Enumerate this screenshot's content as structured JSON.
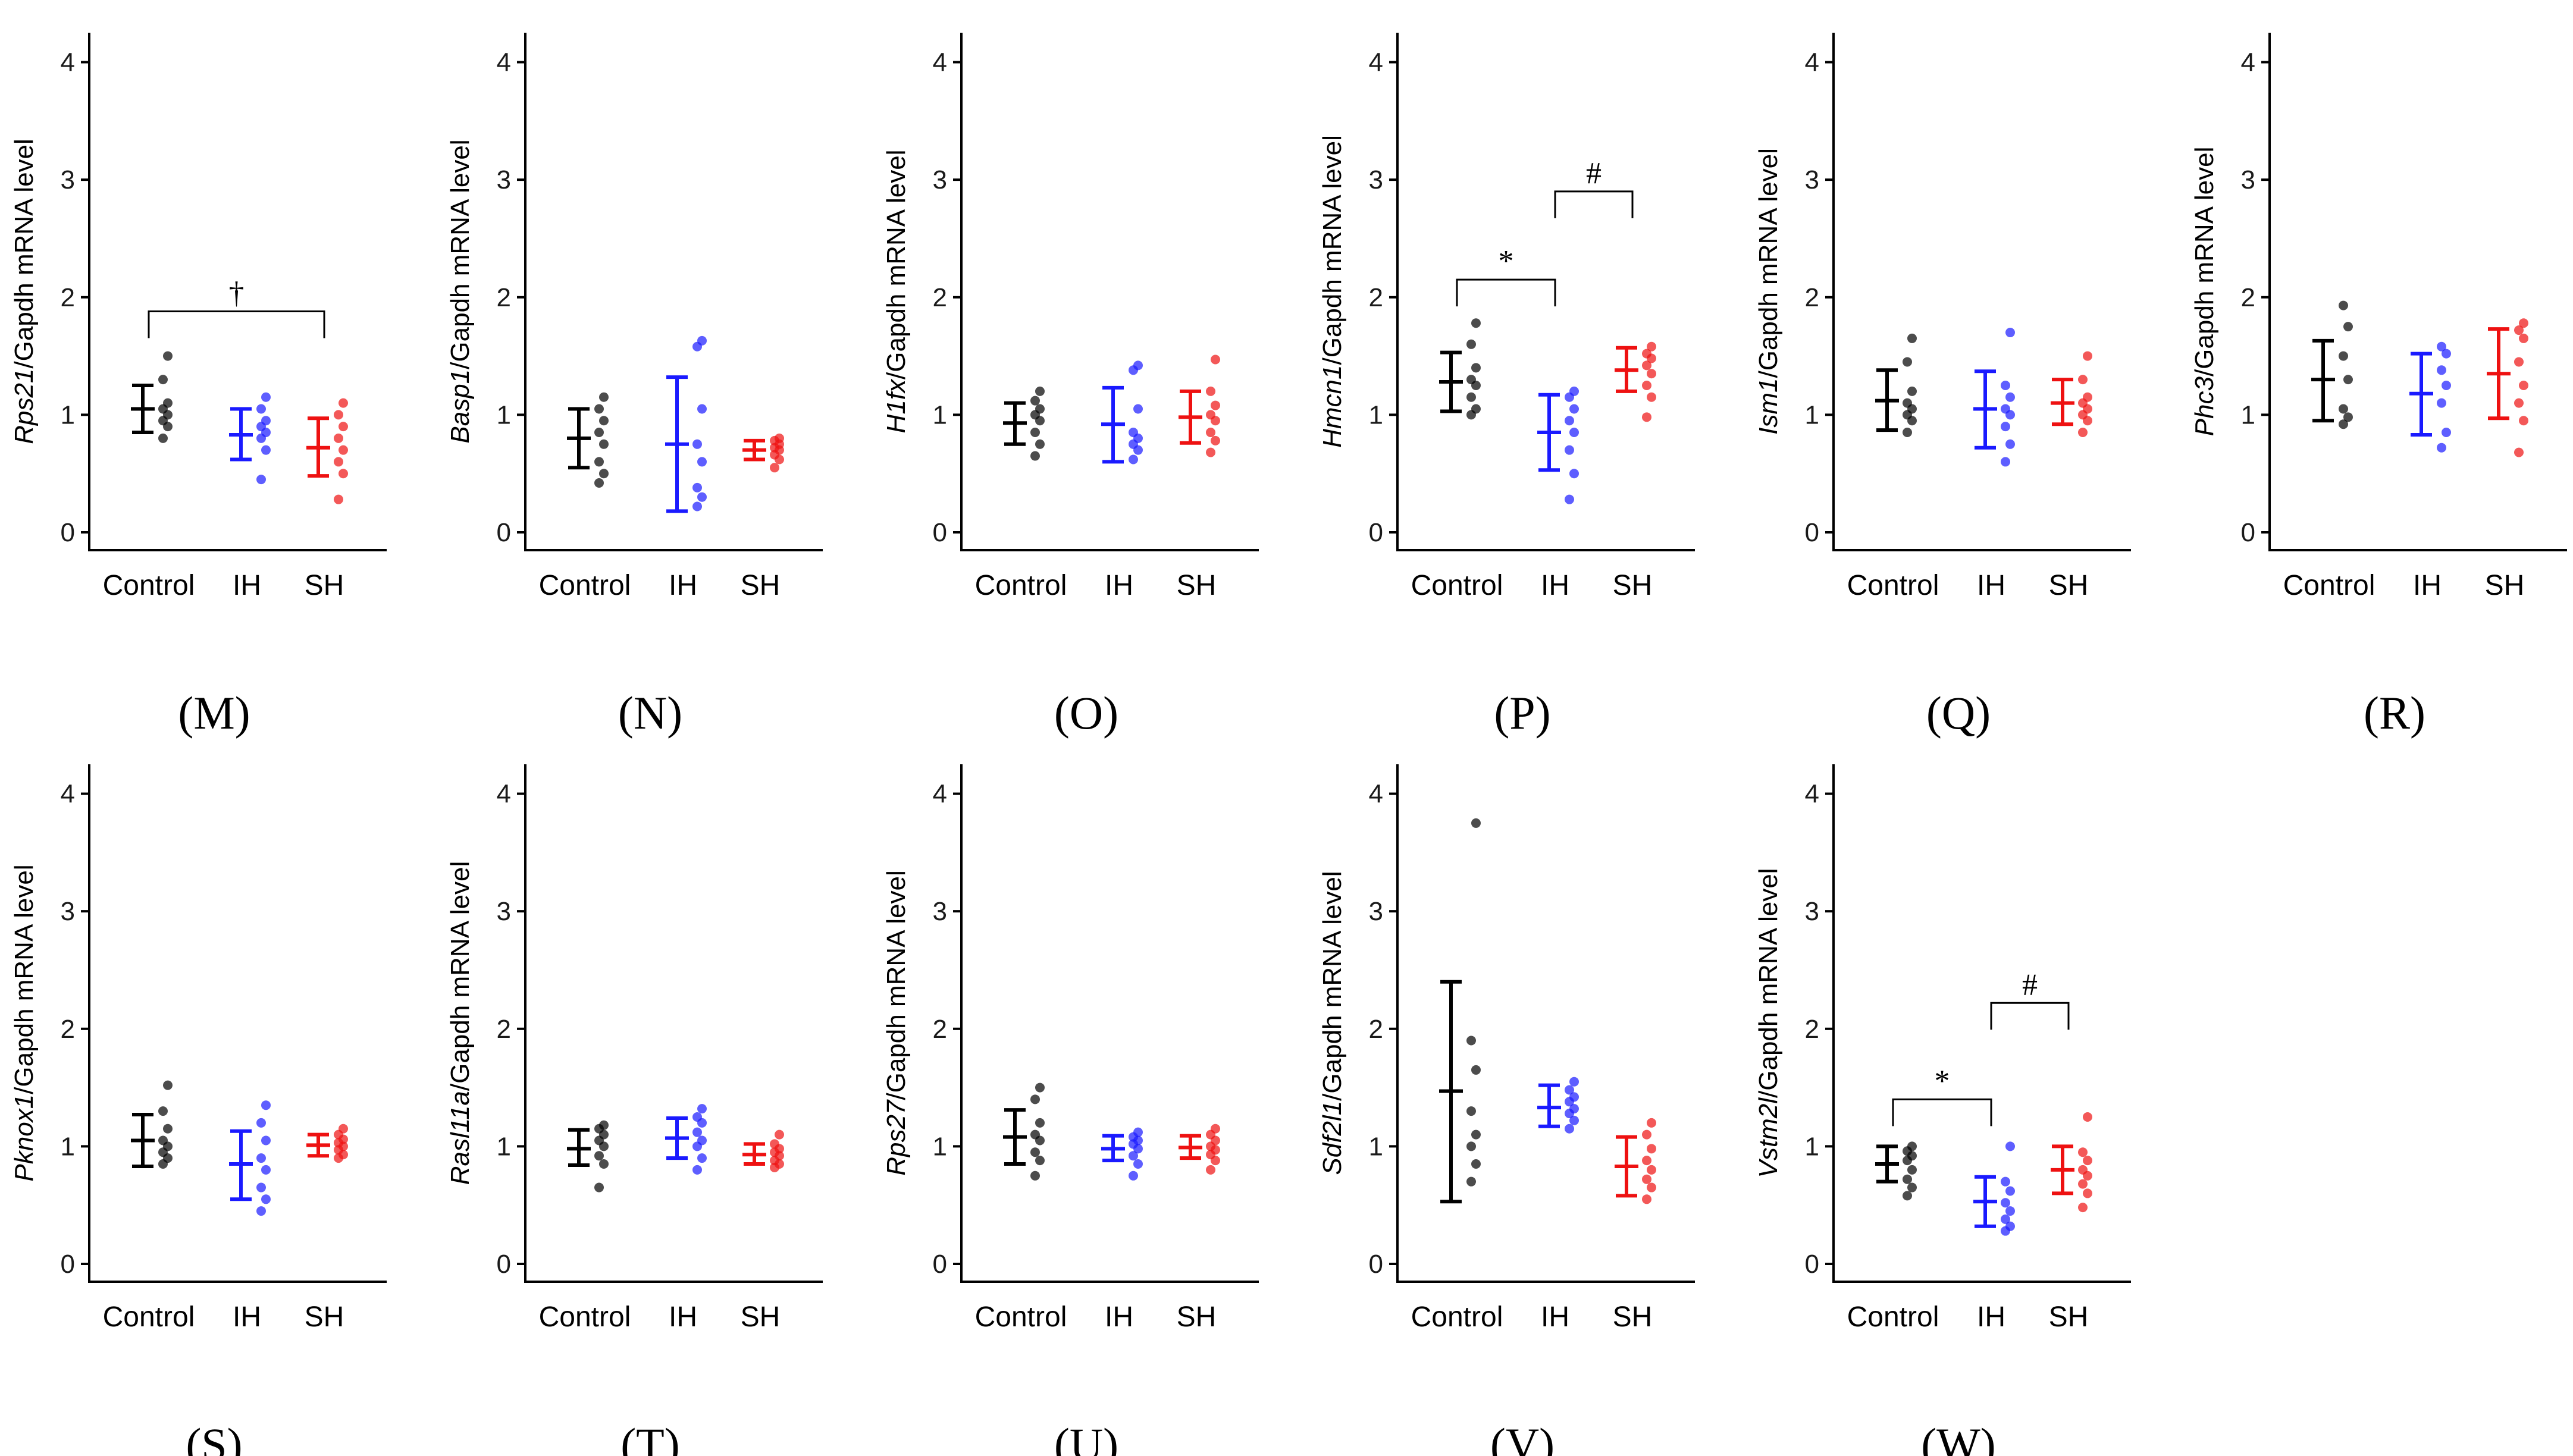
{
  "chart_data": [
    {
      "panel": "(M)",
      "type": "scatter",
      "gene": "Rps21",
      "ylabel_suffix": "/Gapdh mRNA level",
      "categories": [
        "Control",
        "IH",
        "SH"
      ],
      "yticks": [
        "0",
        "1",
        "2",
        "3",
        "4"
      ],
      "ylim": [
        0,
        4.2
      ],
      "series": [
        {
          "name": "Control",
          "color": "#000000",
          "mean": 1.05,
          "lower": 0.85,
          "upper": 1.25,
          "points": [
            0.8,
            0.9,
            0.95,
            1.0,
            1.05,
            1.1,
            1.3,
            1.5
          ]
        },
        {
          "name": "IH",
          "color": "#1a1aff",
          "mean": 0.83,
          "lower": 0.62,
          "upper": 1.05,
          "points": [
            0.45,
            0.7,
            0.8,
            0.85,
            0.9,
            0.95,
            1.05,
            1.15
          ]
        },
        {
          "name": "SH",
          "color": "#ee1111",
          "mean": 0.72,
          "lower": 0.48,
          "upper": 0.97,
          "points": [
            0.28,
            0.5,
            0.6,
            0.7,
            0.8,
            0.9,
            1.0,
            1.1
          ]
        }
      ],
      "annotations": [
        {
          "from": 0,
          "to": 2,
          "label": "†",
          "y": 1.88
        }
      ]
    },
    {
      "panel": "(N)",
      "type": "scatter",
      "gene": "Basp1",
      "ylabel_suffix": "/Gapdh mRNA level",
      "categories": [
        "Control",
        "IH",
        "SH"
      ],
      "yticks": [
        "0",
        "1",
        "2",
        "3",
        "4"
      ],
      "ylim": [
        0,
        4.2
      ],
      "series": [
        {
          "name": "Control",
          "color": "#000000",
          "mean": 0.8,
          "lower": 0.55,
          "upper": 1.05,
          "points": [
            0.42,
            0.5,
            0.6,
            0.75,
            0.85,
            0.95,
            1.05,
            1.15
          ]
        },
        {
          "name": "IH",
          "color": "#1a1aff",
          "mean": 0.75,
          "lower": 0.18,
          "upper": 1.32,
          "points": [
            0.22,
            0.3,
            0.38,
            0.6,
            0.75,
            1.05,
            1.58,
            1.63
          ]
        },
        {
          "name": "SH",
          "color": "#ee1111",
          "mean": 0.7,
          "lower": 0.62,
          "upper": 0.78,
          "points": [
            0.55,
            0.62,
            0.66,
            0.7,
            0.72,
            0.75,
            0.78,
            0.8
          ]
        }
      ],
      "annotations": []
    },
    {
      "panel": "(O)",
      "type": "scatter",
      "gene": "H1fx",
      "ylabel_suffix": "/Gapdh mRNA level",
      "categories": [
        "Control",
        "IH",
        "SH"
      ],
      "yticks": [
        "0",
        "1",
        "2",
        "3",
        "4"
      ],
      "ylim": [
        0,
        4.2
      ],
      "series": [
        {
          "name": "Control",
          "color": "#000000",
          "mean": 0.93,
          "lower": 0.75,
          "upper": 1.1,
          "points": [
            0.65,
            0.75,
            0.85,
            0.95,
            1.0,
            1.05,
            1.12,
            1.2
          ]
        },
        {
          "name": "IH",
          "color": "#1a1aff",
          "mean": 0.92,
          "lower": 0.6,
          "upper": 1.23,
          "points": [
            0.62,
            0.7,
            0.75,
            0.8,
            0.85,
            1.05,
            1.38,
            1.42
          ]
        },
        {
          "name": "SH",
          "color": "#ee1111",
          "mean": 0.98,
          "lower": 0.76,
          "upper": 1.2,
          "points": [
            0.68,
            0.78,
            0.85,
            0.95,
            1.0,
            1.08,
            1.2,
            1.47
          ]
        }
      ],
      "annotations": []
    },
    {
      "panel": "(P)",
      "type": "scatter",
      "gene": "Hmcn1",
      "ylabel_suffix": "/Gapdh mRNA level",
      "categories": [
        "Control",
        "IH",
        "SH"
      ],
      "yticks": [
        "0",
        "1",
        "2",
        "3",
        "4"
      ],
      "ylim": [
        0,
        4.2
      ],
      "series": [
        {
          "name": "Control",
          "color": "#000000",
          "mean": 1.28,
          "lower": 1.03,
          "upper": 1.53,
          "points": [
            1.0,
            1.05,
            1.15,
            1.25,
            1.3,
            1.4,
            1.6,
            1.78
          ]
        },
        {
          "name": "IH",
          "color": "#1a1aff",
          "mean": 0.85,
          "lower": 0.53,
          "upper": 1.17,
          "points": [
            0.28,
            0.5,
            0.7,
            0.85,
            0.95,
            1.05,
            1.15,
            1.2
          ]
        },
        {
          "name": "SH",
          "color": "#ee1111",
          "mean": 1.38,
          "lower": 1.2,
          "upper": 1.57,
          "points": [
            0.98,
            1.15,
            1.25,
            1.35,
            1.42,
            1.48,
            1.52,
            1.58
          ]
        }
      ],
      "annotations": [
        {
          "from": 0,
          "to": 1,
          "label": "*",
          "y": 2.15
        },
        {
          "from": 1,
          "to": 2,
          "label": "#",
          "y": 2.9
        }
      ]
    },
    {
      "panel": "(Q)",
      "type": "scatter",
      "gene": "Ism1",
      "ylabel_suffix": "/Gapdh mRNA level",
      "categories": [
        "Control",
        "IH",
        "SH"
      ],
      "yticks": [
        "0",
        "1",
        "2",
        "3",
        "4"
      ],
      "ylim": [
        0,
        4.2
      ],
      "series": [
        {
          "name": "Control",
          "color": "#000000",
          "mean": 1.12,
          "lower": 0.87,
          "upper": 1.38,
          "points": [
            0.85,
            0.95,
            1.0,
            1.05,
            1.1,
            1.2,
            1.45,
            1.65
          ]
        },
        {
          "name": "IH",
          "color": "#1a1aff",
          "mean": 1.05,
          "lower": 0.72,
          "upper": 1.37,
          "points": [
            0.6,
            0.75,
            0.9,
            1.0,
            1.05,
            1.15,
            1.25,
            1.7
          ]
        },
        {
          "name": "SH",
          "color": "#ee1111",
          "mean": 1.1,
          "lower": 0.92,
          "upper": 1.3,
          "points": [
            0.85,
            0.95,
            1.0,
            1.05,
            1.1,
            1.15,
            1.3,
            1.5
          ]
        }
      ],
      "annotations": []
    },
    {
      "panel": "(R)",
      "type": "scatter",
      "gene": "Phc3",
      "ylabel_suffix": "/Gapdh mRNA level",
      "categories": [
        "Control",
        "IH",
        "SH"
      ],
      "yticks": [
        "0",
        "1",
        "2",
        "3",
        "4"
      ],
      "ylim": [
        0,
        4.2
      ],
      "series": [
        {
          "name": "Control",
          "color": "#000000",
          "mean": 1.3,
          "lower": 0.95,
          "upper": 1.63,
          "points": [
            0.92,
            0.98,
            1.05,
            1.3,
            1.5,
            1.75,
            1.93
          ]
        },
        {
          "name": "IH",
          "color": "#1a1aff",
          "mean": 1.18,
          "lower": 0.83,
          "upper": 1.52,
          "points": [
            0.72,
            0.85,
            1.1,
            1.25,
            1.38,
            1.52,
            1.58
          ]
        },
        {
          "name": "SH",
          "color": "#ee1111",
          "mean": 1.35,
          "lower": 0.97,
          "upper": 1.73,
          "points": [
            0.68,
            0.95,
            1.1,
            1.25,
            1.45,
            1.65,
            1.72,
            1.78
          ]
        }
      ],
      "annotations": []
    },
    {
      "panel": "(S)",
      "type": "scatter",
      "gene": "Pknox1",
      "ylabel_suffix": "/Gapdh mRNA level",
      "categories": [
        "Control",
        "IH",
        "SH"
      ],
      "yticks": [
        "0",
        "1",
        "2",
        "3",
        "4"
      ],
      "ylim": [
        0,
        4.2
      ],
      "series": [
        {
          "name": "Control",
          "color": "#000000",
          "mean": 1.05,
          "lower": 0.83,
          "upper": 1.27,
          "points": [
            0.85,
            0.9,
            0.95,
            1.0,
            1.05,
            1.15,
            1.3,
            1.52
          ]
        },
        {
          "name": "IH",
          "color": "#1a1aff",
          "mean": 0.85,
          "lower": 0.55,
          "upper": 1.13,
          "points": [
            0.45,
            0.55,
            0.65,
            0.8,
            0.9,
            1.05,
            1.2,
            1.35
          ]
        },
        {
          "name": "SH",
          "color": "#ee1111",
          "mean": 1.01,
          "lower": 0.92,
          "upper": 1.1,
          "points": [
            0.9,
            0.93,
            0.97,
            1.0,
            1.03,
            1.06,
            1.1,
            1.15
          ]
        }
      ],
      "annotations": []
    },
    {
      "panel": "(T)",
      "type": "scatter",
      "gene": "Rasl11a",
      "ylabel_suffix": "/Gapdh mRNA level",
      "categories": [
        "Control",
        "IH",
        "SH"
      ],
      "yticks": [
        "0",
        "1",
        "2",
        "3",
        "4"
      ],
      "ylim": [
        0,
        4.2
      ],
      "series": [
        {
          "name": "Control",
          "color": "#000000",
          "mean": 0.98,
          "lower": 0.84,
          "upper": 1.14,
          "points": [
            0.65,
            0.85,
            0.92,
            1.0,
            1.05,
            1.1,
            1.15,
            1.18
          ]
        },
        {
          "name": "IH",
          "color": "#1a1aff",
          "mean": 1.07,
          "lower": 0.9,
          "upper": 1.24,
          "points": [
            0.8,
            0.9,
            1.0,
            1.05,
            1.12,
            1.2,
            1.25,
            1.32
          ]
        },
        {
          "name": "SH",
          "color": "#ee1111",
          "mean": 0.93,
          "lower": 0.85,
          "upper": 1.02,
          "points": [
            0.82,
            0.85,
            0.88,
            0.92,
            0.95,
            0.98,
            1.02,
            1.1
          ]
        }
      ],
      "annotations": []
    },
    {
      "panel": "(U)",
      "type": "scatter",
      "gene": "Rps27",
      "ylabel_suffix": "/Gapdh mRNA level",
      "categories": [
        "Control",
        "IH",
        "SH"
      ],
      "yticks": [
        "0",
        "1",
        "2",
        "3",
        "4"
      ],
      "ylim": [
        0,
        4.2
      ],
      "series": [
        {
          "name": "Control",
          "color": "#000000",
          "mean": 1.08,
          "lower": 0.85,
          "upper": 1.31,
          "points": [
            0.75,
            0.88,
            0.95,
            1.05,
            1.1,
            1.2,
            1.4,
            1.5
          ]
        },
        {
          "name": "IH",
          "color": "#1a1aff",
          "mean": 0.98,
          "lower": 0.88,
          "upper": 1.09,
          "points": [
            0.75,
            0.85,
            0.92,
            0.98,
            1.02,
            1.05,
            1.08,
            1.12
          ]
        },
        {
          "name": "SH",
          "color": "#ee1111",
          "mean": 0.99,
          "lower": 0.9,
          "upper": 1.09,
          "points": [
            0.8,
            0.88,
            0.93,
            0.97,
            1.0,
            1.05,
            1.1,
            1.15
          ]
        }
      ],
      "annotations": []
    },
    {
      "panel": "(V)",
      "type": "scatter",
      "gene": "Sdf2l1",
      "ylabel_suffix": "/Gapdh mRNA level",
      "categories": [
        "Control",
        "IH",
        "SH"
      ],
      "yticks": [
        "0",
        "1",
        "2",
        "3",
        "4"
      ],
      "ylim": [
        0,
        4.2
      ],
      "series": [
        {
          "name": "Control",
          "color": "#000000",
          "mean": 1.47,
          "lower": 0.53,
          "upper": 2.4,
          "points": [
            0.7,
            0.85,
            1.0,
            1.1,
            1.3,
            1.65,
            1.9,
            3.75
          ]
        },
        {
          "name": "IH",
          "color": "#1a1aff",
          "mean": 1.33,
          "lower": 1.17,
          "upper": 1.52,
          "points": [
            1.15,
            1.22,
            1.28,
            1.32,
            1.38,
            1.42,
            1.48,
            1.55
          ]
        },
        {
          "name": "SH",
          "color": "#ee1111",
          "mean": 0.83,
          "lower": 0.58,
          "upper": 1.08,
          "points": [
            0.55,
            0.65,
            0.72,
            0.8,
            0.88,
            0.98,
            1.1,
            1.2
          ]
        }
      ],
      "annotations": []
    },
    {
      "panel": "(W)",
      "type": "scatter",
      "gene": "Vstm2l",
      "ylabel_suffix": "/Gapdh mRNA level",
      "categories": [
        "Control",
        "IH",
        "SH"
      ],
      "yticks": [
        "0",
        "1",
        "2",
        "3",
        "4"
      ],
      "ylim": [
        0,
        4.2
      ],
      "series": [
        {
          "name": "Control",
          "color": "#000000",
          "mean": 0.85,
          "lower": 0.7,
          "upper": 1.0,
          "points": [
            0.58,
            0.65,
            0.72,
            0.8,
            0.88,
            0.92,
            0.96,
            1.0
          ]
        },
        {
          "name": "IH",
          "color": "#1a1aff",
          "mean": 0.53,
          "lower": 0.32,
          "upper": 0.74,
          "points": [
            0.28,
            0.32,
            0.38,
            0.45,
            0.52,
            0.62,
            0.7,
            1.0
          ]
        },
        {
          "name": "SH",
          "color": "#ee1111",
          "mean": 0.8,
          "lower": 0.6,
          "upper": 1.0,
          "points": [
            0.48,
            0.6,
            0.68,
            0.75,
            0.8,
            0.88,
            0.95,
            1.25
          ]
        }
      ],
      "annotations": [
        {
          "from": 0,
          "to": 1,
          "label": "*",
          "y": 1.4
        },
        {
          "from": 1,
          "to": 2,
          "label": "#",
          "y": 2.22
        }
      ]
    }
  ]
}
